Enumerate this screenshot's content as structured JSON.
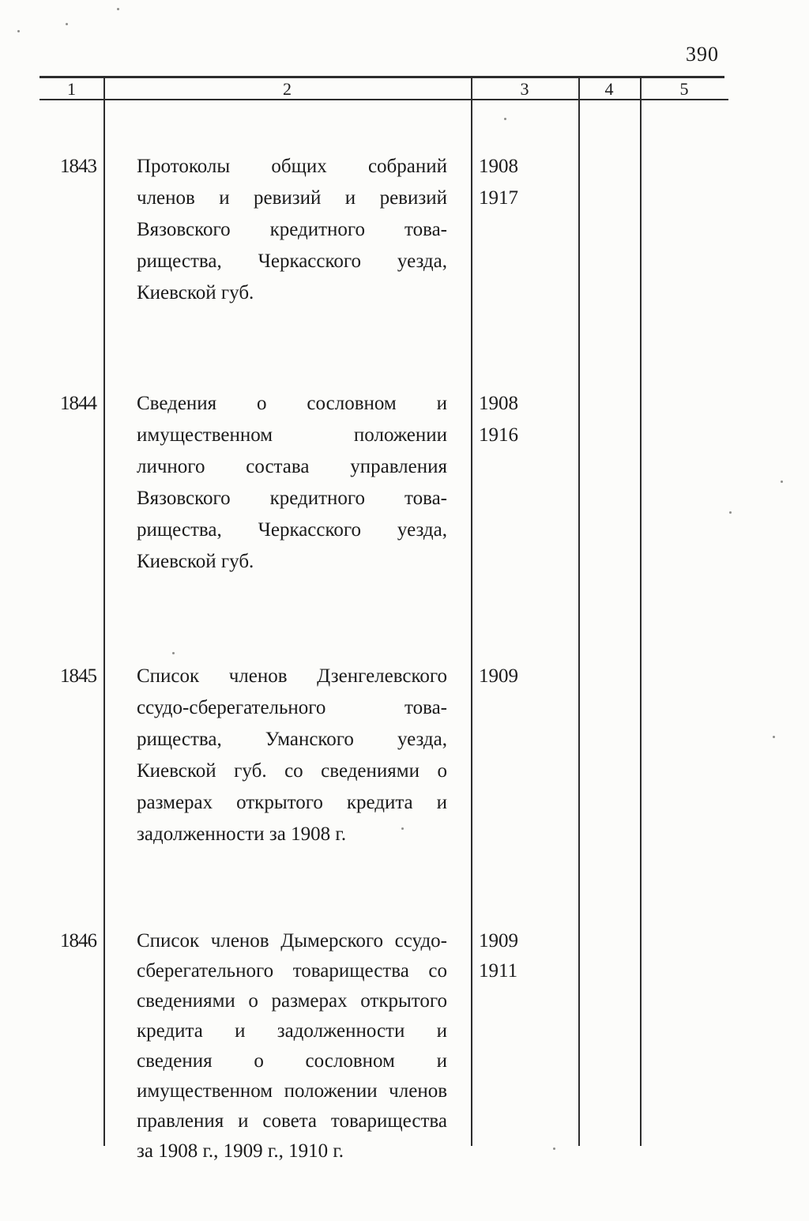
{
  "page": {
    "number": "390"
  },
  "table": {
    "headers": [
      "1",
      "2",
      "3",
      "4",
      "5"
    ],
    "rows": [
      {
        "id": "1843",
        "description_lines": [
          "Протоколы общих собраний",
          "членов и ревизий и ревизий",
          "Вязовского кредитного това-",
          "рищества, Черкасского уезда,",
          "Киевской губ."
        ],
        "dates": [
          "1908",
          "1917"
        ]
      },
      {
        "id": "1844",
        "description_lines": [
          "Сведения о сословном и",
          "имущественном положении",
          "личного состава управления",
          "Вязовского кредитного това-",
          "рищества, Черкасского уезда,",
          "Киевской губ."
        ],
        "dates": [
          "1908",
          "1916"
        ]
      },
      {
        "id": "1845",
        "description_lines": [
          "Список членов Дзенгелевского",
          "ссудо-сберегательного това-",
          "рищества, Уманского уезда,",
          "Киевской губ. со сведениями о",
          "размерах открытого кредита и",
          "задолженности за 1908 г."
        ],
        "dates": [
          "1909"
        ]
      },
      {
        "id": "1846",
        "description_lines": [
          "Список членов Дымерского ссудо-",
          "сберегательного товарищества со",
          "сведениями о размерах открытого",
          "кредита и задолженности и",
          "сведения о сословном и",
          "имущественном положении членов",
          "правления и совета товарищества",
          "за 1908 г., 1909 г., 1910 г."
        ],
        "dates": [
          "1909",
          "1911"
        ]
      }
    ]
  },
  "colors": {
    "ink": "#1b1b1b",
    "paper": "#fcfcfa",
    "rule": "#2d2d2d"
  }
}
